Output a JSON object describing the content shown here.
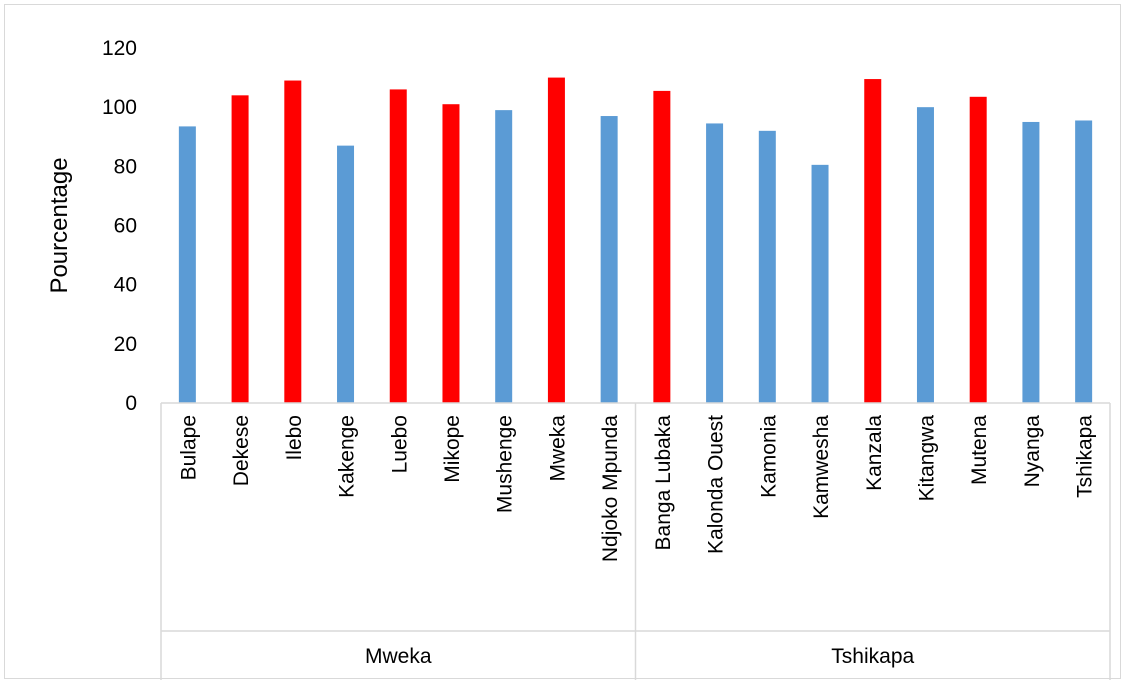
{
  "chart_data": {
    "type": "bar",
    "title": "",
    "xlabel": "",
    "ylabel": "Pourcentage",
    "ylim": [
      0,
      120
    ],
    "yticks": [
      0,
      20,
      40,
      60,
      80,
      100,
      120
    ],
    "grid": false,
    "legend": "none",
    "categories": [
      "Bulape",
      "Dekese",
      "Ilebo",
      "Kakenge",
      "Luebo",
      "Mikope",
      "Mushenge",
      "Mweka",
      "Ndjoko Mpunda",
      "Banga Lubaka",
      "Kalonda Ouest",
      "Kamonia",
      "Kamwesha",
      "Kanzala",
      "Kitangwa",
      "Mutena",
      "Nyanga",
      "Tshikapa"
    ],
    "groups": [
      {
        "label": "Mweka",
        "count": 9
      },
      {
        "label": "Tshikapa",
        "count": 9
      }
    ],
    "values": [
      93.5,
      104,
      109,
      87,
      106,
      101,
      99,
      110,
      97,
      105.5,
      94.5,
      92,
      80.5,
      109.5,
      100,
      103.5,
      95,
      95.5
    ],
    "bar_colors": [
      "#5b9bd5",
      "#ff0000",
      "#ff0000",
      "#5b9bd5",
      "#ff0000",
      "#ff0000",
      "#5b9bd5",
      "#ff0000",
      "#5b9bd5",
      "#ff0000",
      "#5b9bd5",
      "#5b9bd5",
      "#5b9bd5",
      "#ff0000",
      "#5b9bd5",
      "#ff0000",
      "#5b9bd5",
      "#5b9bd5"
    ],
    "colors": {
      "blue": "#5b9bd5",
      "red": "#ff0000",
      "axis": "#d9d9d9"
    }
  }
}
